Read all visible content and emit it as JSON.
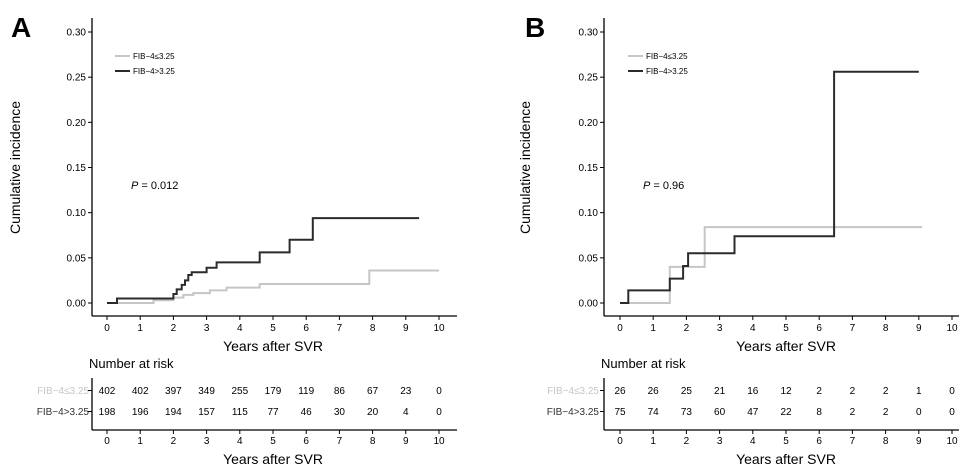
{
  "chart_data": [
    {
      "type": "line",
      "panel_label": "A",
      "xlabel": "Years after SVR",
      "ylabel": "Cumulative incidence",
      "xlim": [
        0,
        10
      ],
      "ylim": [
        0,
        0.3
      ],
      "x_ticks": [
        "0",
        "1",
        "2",
        "3",
        "4",
        "5",
        "6",
        "7",
        "8",
        "9",
        "10"
      ],
      "y_ticks": [
        "0.00",
        "0.05",
        "0.10",
        "0.15",
        "0.20",
        "0.25",
        "0.30"
      ],
      "legend_position": "top-left",
      "p_prefix": "P",
      "p_value": " = 0.012",
      "series": [
        {
          "name": "FIB−4≤3.25",
          "color": "#c6c6c6",
          "x": [
            0,
            1.4,
            1.4,
            2.0,
            2.0,
            2.3,
            2.3,
            2.6,
            2.6,
            3.1,
            3.1,
            3.6,
            3.6,
            4.6,
            4.6,
            7.9,
            7.9,
            10.0
          ],
          "y": [
            0,
            0,
            0.003,
            0.003,
            0.006,
            0.006,
            0.009,
            0.009,
            0.011,
            0.011,
            0.014,
            0.014,
            0.017,
            0.017,
            0.021,
            0.021,
            0.036,
            0.036
          ]
        },
        {
          "name": "FIB−4>3.25",
          "color": "#2b2b2b",
          "x": [
            0,
            0.3,
            0.3,
            2.0,
            2.0,
            2.1,
            2.1,
            2.25,
            2.25,
            2.35,
            2.35,
            2.45,
            2.45,
            2.55,
            2.55,
            3.0,
            3.0,
            3.3,
            3.3,
            4.6,
            4.6,
            5.5,
            5.5,
            6.2,
            6.2,
            9.4
          ],
          "y": [
            0,
            0,
            0.005,
            0.005,
            0.01,
            0.01,
            0.015,
            0.015,
            0.02,
            0.02,
            0.025,
            0.025,
            0.031,
            0.031,
            0.034,
            0.034,
            0.039,
            0.039,
            0.045,
            0.045,
            0.056,
            0.056,
            0.07,
            0.07,
            0.094,
            0.094
          ]
        }
      ],
      "risk_table": {
        "title": "Number at risk",
        "xlabel": "Years after SVR",
        "rows": [
          {
            "label": "FIB−4≤3.25",
            "color": "#c6c6c6",
            "values": [
              "402",
              "402",
              "397",
              "349",
              "255",
              "179",
              "119",
              "86",
              "67",
              "23",
              "0"
            ]
          },
          {
            "label": "FIB−4>3.25",
            "color": "#2b2b2b",
            "values": [
              "198",
              "196",
              "194",
              "157",
              "115",
              "77",
              "46",
              "30",
              "20",
              "4",
              "0"
            ]
          }
        ]
      }
    },
    {
      "type": "line",
      "panel_label": "B",
      "xlabel": "Years after SVR",
      "ylabel": "Cumulative incidence",
      "xlim": [
        0,
        10
      ],
      "ylim": [
        0,
        0.3
      ],
      "x_ticks": [
        "0",
        "1",
        "2",
        "3",
        "4",
        "5",
        "6",
        "7",
        "8",
        "9",
        "10"
      ],
      "y_ticks": [
        "0.00",
        "0.05",
        "0.10",
        "0.15",
        "0.20",
        "0.25",
        "0.30"
      ],
      "legend_position": "top-left",
      "p_prefix": "P",
      "p_value": " = 0.96",
      "series": [
        {
          "name": "FIB−4≤3.25",
          "color": "#c6c6c6",
          "x": [
            0,
            1.5,
            1.5,
            2.0,
            2.0,
            2.55,
            2.55,
            9.1
          ],
          "y": [
            0,
            0,
            0.04,
            0.04,
            0.04,
            0.04,
            0.084,
            0.084
          ]
        },
        {
          "name": "FIB−4>3.25",
          "color": "#2b2b2b",
          "x": [
            0,
            0.25,
            0.25,
            1.5,
            1.5,
            1.9,
            1.9,
            2.05,
            2.05,
            2.45,
            2.45,
            3.45,
            3.45,
            6.45,
            6.45,
            9.0
          ],
          "y": [
            0,
            0,
            0.014,
            0.014,
            0.027,
            0.027,
            0.041,
            0.041,
            0.055,
            0.055,
            0.055,
            0.055,
            0.074,
            0.074,
            0.256,
            0.256
          ]
        }
      ],
      "risk_table": {
        "title": "Number at risk",
        "xlabel": "Years after SVR",
        "rows": [
          {
            "label": "FIB−4≤3.25",
            "color": "#c6c6c6",
            "values": [
              "26",
              "26",
              "25",
              "21",
              "16",
              "12",
              "2",
              "2",
              "2",
              "1",
              "0"
            ]
          },
          {
            "label": "FIB−4>3.25",
            "color": "#2b2b2b",
            "values": [
              "75",
              "74",
              "73",
              "60",
              "47",
              "22",
              "8",
              "2",
              "2",
              "0",
              "0"
            ]
          }
        ]
      }
    }
  ]
}
